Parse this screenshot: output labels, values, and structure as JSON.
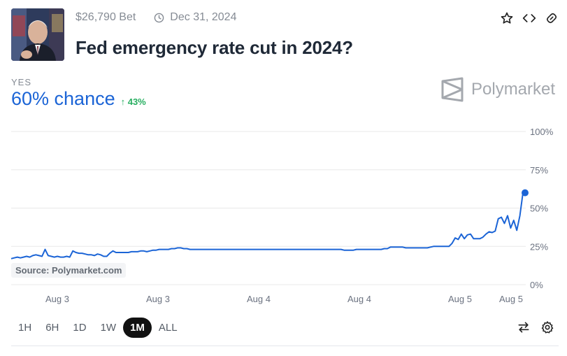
{
  "header": {
    "volume": "$26,790 Bet",
    "end_date": "Dec 31, 2024",
    "title": "Fed emergency rate cut in 2024?"
  },
  "outcome": {
    "label": "YES",
    "chance": "60% chance",
    "change": "↑ 43%"
  },
  "brand": {
    "name": "Polymarket"
  },
  "source": "Source: Polymarket.com",
  "tabs": [
    {
      "label": "1H",
      "active": false
    },
    {
      "label": "6H",
      "active": false
    },
    {
      "label": "1D",
      "active": false
    },
    {
      "label": "1W",
      "active": false
    },
    {
      "label": "1M",
      "active": true
    },
    {
      "label": "ALL",
      "active": false
    }
  ],
  "icons": {
    "star": "star-icon",
    "embed": "code-icon",
    "link": "link-icon",
    "swap": "swap-icon",
    "settings": "gear-icon"
  },
  "colors": {
    "line": "#1b64d6",
    "grid": "#e8e8e8",
    "positive": "#27ae60"
  },
  "chart_data": {
    "type": "line",
    "title": "",
    "xlabel": "",
    "ylabel": "",
    "ylim": [
      0,
      100
    ],
    "yticks": [
      "100%",
      "75%",
      "50%",
      "25%",
      "0%"
    ],
    "ytick_values": [
      100,
      75,
      50,
      25,
      0
    ],
    "xticks": [
      "Aug 3",
      "Aug 3",
      "Aug 4",
      "Aug 4",
      "Aug 5",
      "Aug 5"
    ],
    "grid": true,
    "series": [
      {
        "values": [
          17,
          17.5,
          18,
          17.5,
          18,
          18.5,
          18,
          19,
          19.5,
          19,
          18.5,
          23,
          19,
          18.5,
          18,
          18.5,
          18,
          18,
          18.5,
          18,
          22,
          21,
          20.5,
          20.5,
          20,
          19.5,
          19.5,
          19,
          20,
          19.5,
          18.5,
          18.5,
          20.5,
          22,
          21,
          21,
          21,
          21,
          21,
          21.5,
          21.5,
          21.5,
          22,
          22,
          21.5,
          22,
          22.5,
          22.5,
          23,
          23,
          23,
          23,
          23.5,
          23.5,
          24,
          24,
          23.5,
          23.5,
          23,
          23,
          23,
          23,
          23,
          23,
          23,
          23,
          23,
          23,
          23,
          23,
          23,
          23,
          23,
          23,
          23,
          23,
          23,
          23,
          23,
          23,
          23,
          23,
          23,
          23,
          23,
          23,
          23,
          23,
          23,
          23,
          23,
          23,
          23,
          23,
          23,
          23,
          23,
          23,
          23,
          23,
          23,
          23,
          23,
          23,
          23,
          23,
          23,
          23,
          22.5,
          22.5,
          22.5,
          22.5,
          23,
          23,
          23,
          23,
          23,
          23,
          23,
          23,
          23,
          23.5,
          23.5,
          24.5,
          24.5,
          24.5,
          24.5,
          24.5,
          24,
          24,
          24,
          24,
          24,
          24,
          24,
          24,
          24.5,
          25,
          25,
          25,
          25,
          25,
          25,
          27,
          30.5,
          29.5,
          33,
          30,
          32.5,
          33,
          30,
          30,
          30,
          31,
          33,
          34.5,
          34,
          35,
          43,
          44,
          40,
          45,
          37,
          42,
          35.5,
          45,
          60
        ]
      }
    ]
  }
}
